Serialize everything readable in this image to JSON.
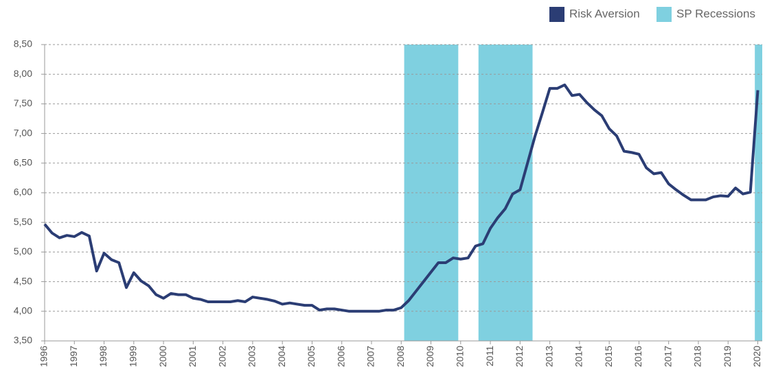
{
  "chart_data": {
    "type": "line",
    "legend": "upper right",
    "grid": true,
    "xlim": [
      1996,
      2020.15
    ],
    "ylim": [
      3.5,
      8.5
    ],
    "yticks": [
      {
        "value": 3.5,
        "label": "3,50"
      },
      {
        "value": 4,
        "label": "4,00"
      },
      {
        "value": 4.5,
        "label": "4,50"
      },
      {
        "value": 5,
        "label": "5,00"
      },
      {
        "value": 5.5,
        "label": "5,50"
      },
      {
        "value": 6,
        "label": "6,00"
      },
      {
        "value": 6.5,
        "label": "6,50"
      },
      {
        "value": 7,
        "label": "7,00"
      },
      {
        "value": 7.5,
        "label": "7,50"
      },
      {
        "value": 8,
        "label": "8,00"
      },
      {
        "value": 8.5,
        "label": "8,50"
      }
    ],
    "xticks": [
      1996,
      1997,
      1998,
      1999,
      2000,
      2001,
      2002,
      2003,
      2004,
      2005,
      2006,
      2007,
      2008,
      2009,
      2010,
      2011,
      2012,
      2013,
      2014,
      2015,
      2016,
      2017,
      2018,
      2019,
      2020
    ],
    "recessions": {
      "name": "SP Recessions",
      "color": "#7fd0e0",
      "periods": [
        [
          2008.1,
          2009.92
        ],
        [
          2010.6,
          2012.42
        ],
        [
          2019.9,
          2020.15
        ]
      ]
    },
    "x": [
      1996,
      1996.25,
      1996.5,
      1996.75,
      1997,
      1997.25,
      1997.5,
      1997.75,
      1998,
      1998.25,
      1998.5,
      1998.75,
      1999,
      1999.25,
      1999.5,
      1999.75,
      2000,
      2000.25,
      2000.5,
      2000.75,
      2001,
      2001.25,
      2001.5,
      2001.75,
      2002,
      2002.25,
      2002.5,
      2002.75,
      2003,
      2003.25,
      2003.5,
      2003.75,
      2004,
      2004.25,
      2004.5,
      2004.75,
      2005,
      2005.25,
      2005.5,
      2005.75,
      2006,
      2006.25,
      2006.5,
      2006.75,
      2007,
      2007.25,
      2007.5,
      2007.75,
      2008,
      2008.25,
      2008.5,
      2008.75,
      2009,
      2009.25,
      2009.5,
      2009.75,
      2010,
      2010.25,
      2010.5,
      2010.75,
      2011,
      2011.25,
      2011.5,
      2011.75,
      2012,
      2012.25,
      2012.5,
      2012.75,
      2013,
      2013.25,
      2013.5,
      2013.75,
      2014,
      2014.25,
      2014.5,
      2014.75,
      2015,
      2015.25,
      2015.5,
      2015.75,
      2016,
      2016.25,
      2016.5,
      2016.75,
      2017,
      2017.25,
      2017.5,
      2017.75,
      2018,
      2018.25,
      2018.5,
      2018.75,
      2019,
      2019.25,
      2019.5,
      2019.75,
      2020
    ],
    "series": [
      {
        "name": "Risk Aversion",
        "color": "#2b3d74",
        "values": [
          5.47,
          5.32,
          5.24,
          5.28,
          5.26,
          5.33,
          5.27,
          4.68,
          4.98,
          4.87,
          4.82,
          4.4,
          4.65,
          4.51,
          4.43,
          4.28,
          4.22,
          4.3,
          4.28,
          4.28,
          4.22,
          4.2,
          4.16,
          4.16,
          4.16,
          4.16,
          4.18,
          4.16,
          4.24,
          4.22,
          4.2,
          4.17,
          4.12,
          4.14,
          4.12,
          4.1,
          4.1,
          4.02,
          4.04,
          4.04,
          4.02,
          4.0,
          4.0,
          4.0,
          4.0,
          4.0,
          4.02,
          4.02,
          4.06,
          4.18,
          4.34,
          4.5,
          4.66,
          4.82,
          4.82,
          4.9,
          4.88,
          4.9,
          5.1,
          5.14,
          5.4,
          5.58,
          5.73,
          5.98,
          6.05,
          6.5,
          6.95,
          7.35,
          7.76,
          7.76,
          7.82,
          7.64,
          7.66,
          7.52,
          7.4,
          7.3,
          7.08,
          6.96,
          6.7,
          6.68,
          6.65,
          6.42,
          6.32,
          6.34,
          6.15,
          6.05,
          5.96,
          5.88,
          5.88,
          5.88,
          5.93,
          5.95,
          5.94,
          6.08,
          5.98,
          6.01,
          7.73
        ]
      }
    ]
  }
}
